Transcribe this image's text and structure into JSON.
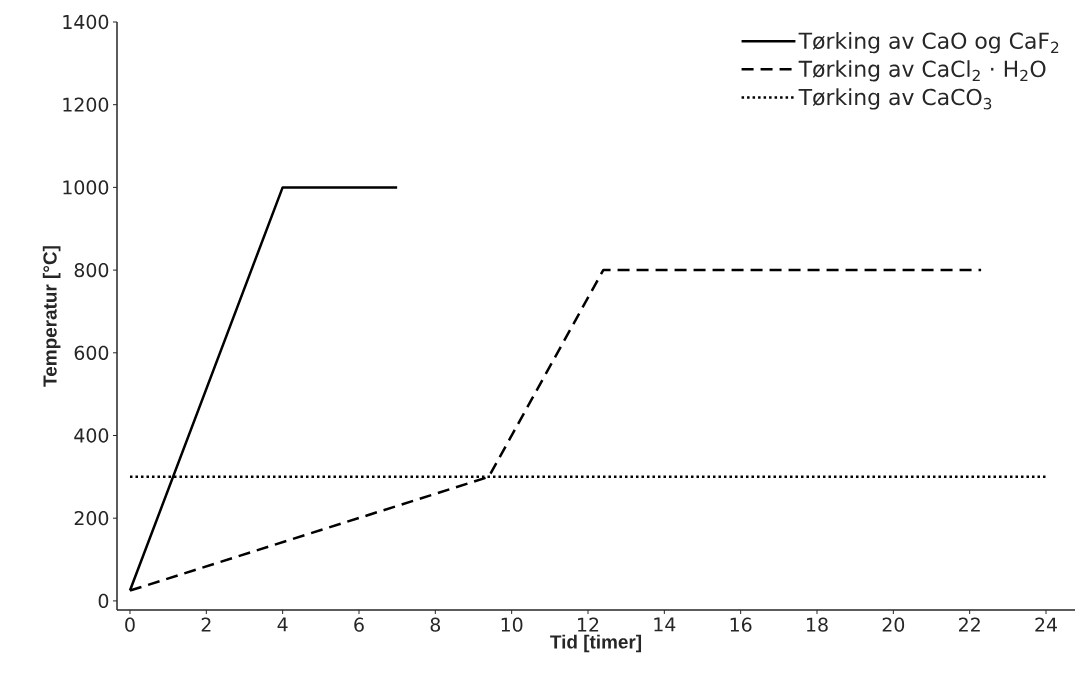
{
  "chart_data": {
    "type": "line",
    "xlabel": "Tid [timer]",
    "ylabel": "Temperatur [°C]",
    "xlim": [
      -0.34,
      24.76
    ],
    "ylim": [
      -22,
      1400
    ],
    "xticks": [
      0,
      2,
      4,
      6,
      8,
      10,
      12,
      14,
      16,
      18,
      20,
      22,
      24
    ],
    "yticks": [
      0,
      200,
      400,
      600,
      800,
      1000,
      1200,
      1400
    ],
    "grid": false,
    "legend": "top right",
    "marker": "none",
    "series": [
      {
        "name": "Tørking av CaO og CaF$_{2}$",
        "color": "#000000",
        "line_style": "solid",
        "x": [
          0,
          4,
          7
        ],
        "values": [
          25,
          1000,
          1000
        ]
      },
      {
        "name": "Tørking av CaCl$_{2}$ · H$_{2}$O",
        "color": "#000000",
        "line_style": "dashed",
        "x": [
          0,
          9.4,
          12.4,
          22.3
        ],
        "values": [
          25,
          300,
          800,
          800
        ]
      },
      {
        "name": "Tørking av CaCO$_{3}$",
        "color": "#000000",
        "line_style": "dotted",
        "x": [
          0,
          24
        ],
        "values": [
          300,
          300
        ]
      }
    ]
  }
}
